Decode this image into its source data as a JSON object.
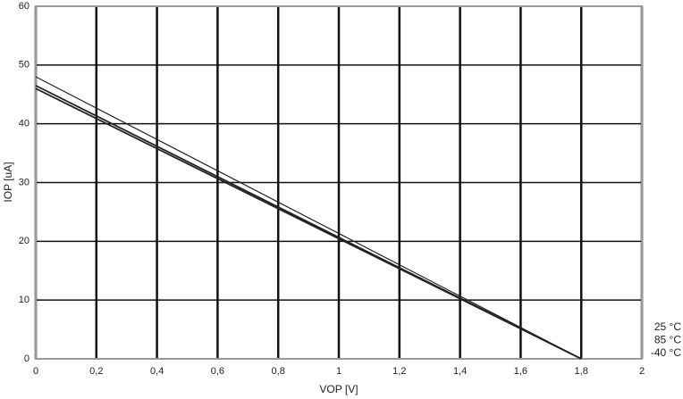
{
  "chart_data": {
    "type": "line",
    "xlabel": "VOP [V]",
    "ylabel": "IOP [uA]",
    "x": [
      0,
      1.8
    ],
    "series": [
      {
        "name": "25 °C",
        "color": "#222222",
        "values": [
          48,
          0
        ]
      },
      {
        "name": "85 °C",
        "color": "#222222",
        "values": [
          46.5,
          0
        ]
      },
      {
        "name": "-40 °C",
        "color": "#222222",
        "values": [
          46,
          0
        ]
      }
    ],
    "xlim": [
      0,
      2
    ],
    "xticks": [
      0,
      {
        "value": 0.2,
        "label": "0,2"
      },
      {
        "value": 0.4,
        "label": "0,4"
      },
      {
        "value": 0.6,
        "label": "0,6"
      },
      {
        "value": 0.8,
        "label": "0,8"
      },
      1,
      {
        "value": 1.2,
        "label": "1,2"
      },
      {
        "value": 1.4,
        "label": "1,4"
      },
      {
        "value": 1.6,
        "label": "1,6"
      },
      {
        "value": 1.8,
        "label": "1,8"
      },
      2
    ],
    "ylim": [
      0,
      60
    ],
    "yticks": [
      0,
      10,
      20,
      30,
      40,
      50,
      60
    ],
    "grid": true
  }
}
